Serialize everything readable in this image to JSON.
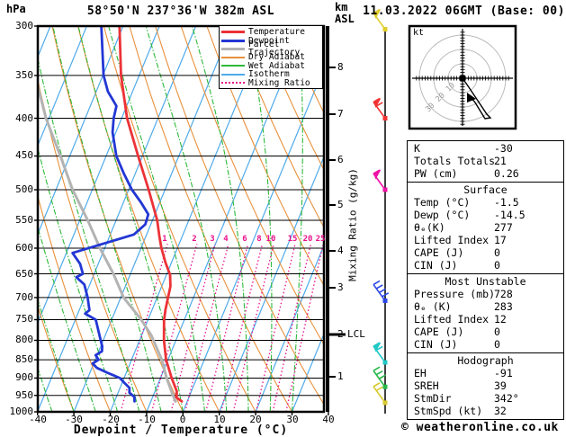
{
  "header": {
    "station_title": "58°50'N 237°36'W 382m ASL",
    "datetime_title": "11.03.2022 06GMT (Base: 00)"
  },
  "axes": {
    "pressure_unit": "hPa",
    "pressure_ticks": [
      300,
      350,
      400,
      450,
      500,
      550,
      600,
      650,
      700,
      750,
      800,
      850,
      900,
      950,
      1000
    ],
    "temp_ticks": [
      -40,
      -30,
      -20,
      -10,
      0,
      10,
      20,
      30,
      40
    ],
    "temp_axis_title": "Dewpoint / Temperature (°C)",
    "km_axis_label": "km ASL",
    "km_ticks": [
      [
        8,
        75
      ],
      [
        7,
        127
      ],
      [
        6,
        178
      ],
      [
        5,
        228
      ],
      [
        4,
        279
      ],
      [
        3,
        320
      ],
      [
        2,
        372
      ],
      [
        1,
        419
      ]
    ],
    "lcl_label": "LCL",
    "mixing_axis_label": "Mixing Ratio (g/kg)"
  },
  "legend": {
    "items": [
      {
        "label": "Temperature",
        "color": "#ec3237",
        "thick": true,
        "dotted": false
      },
      {
        "label": "Dewpoint",
        "color": "#2337d4",
        "thick": true,
        "dotted": false
      },
      {
        "label": "Parcel Trajectory",
        "color": "#b3b3b3",
        "thick": true,
        "dotted": false
      },
      {
        "label": "Dry Adiabat",
        "color": "#e8913c",
        "thick": false,
        "dotted": false
      },
      {
        "label": "Wet Adiabat",
        "color": "#2eb93a",
        "thick": false,
        "dotted": false
      },
      {
        "label": "Isotherm",
        "color": "#4fabea",
        "thick": false,
        "dotted": false
      },
      {
        "label": "Mixing Ratio",
        "color": "#e8118c",
        "thick": false,
        "dotted": true
      }
    ]
  },
  "chart_data": {
    "type": "line",
    "title": "Skew-T log-P sounding 58°50'N 237°36'W 382m ASL 11.03.2022 06GMT",
    "xlabel": "Dewpoint / Temperature (°C)",
    "ylabel": "hPa",
    "x_range": [
      -40,
      40
    ],
    "p_range": [
      300,
      1000
    ],
    "y_scale": "log",
    "skew": "isotherms slant up-right",
    "series": [
      {
        "name": "Temperature",
        "color": "#ec3237",
        "points_p_T": [
          [
            300,
            -61
          ],
          [
            350,
            -55
          ],
          [
            400,
            -48.5
          ],
          [
            450,
            -41.2
          ],
          [
            500,
            -34.5
          ],
          [
            550,
            -28.7
          ],
          [
            578,
            -26.3
          ],
          [
            600,
            -24.4
          ],
          [
            628,
            -21.6
          ],
          [
            652,
            -19.0
          ],
          [
            676,
            -17.6
          ],
          [
            700,
            -17.0
          ],
          [
            728,
            -16.3
          ],
          [
            752,
            -15.5
          ],
          [
            800,
            -13.3
          ],
          [
            850,
            -10.5
          ],
          [
            900,
            -6.9
          ],
          [
            938,
            -4.0
          ],
          [
            956,
            -3.4
          ],
          [
            968,
            -1.5
          ]
        ]
      },
      {
        "name": "Dewpoint",
        "color": "#2337d4",
        "points_p_T": [
          [
            300,
            -66
          ],
          [
            350,
            -59.8
          ],
          [
            368,
            -56.8
          ],
          [
            385,
            -52.8
          ],
          [
            400,
            -52.2
          ],
          [
            418,
            -50.9
          ],
          [
            450,
            -47.2
          ],
          [
            475,
            -43.2
          ],
          [
            500,
            -39.1
          ],
          [
            520,
            -35.2
          ],
          [
            540,
            -31.8
          ],
          [
            557,
            -31.5
          ],
          [
            575,
            -33.5
          ],
          [
            592,
            -41
          ],
          [
            609,
            -48.3
          ],
          [
            630,
            -45
          ],
          [
            650,
            -43.1
          ],
          [
            657,
            -44.5
          ],
          [
            672,
            -41.5
          ],
          [
            700,
            -39.1
          ],
          [
            728,
            -37.2
          ],
          [
            736,
            -38
          ],
          [
            750,
            -34.4
          ],
          [
            775,
            -32.5
          ],
          [
            800,
            -30.7
          ],
          [
            815,
            -29.6
          ],
          [
            828,
            -29.1
          ],
          [
            838,
            -30.4
          ],
          [
            850,
            -29.1
          ],
          [
            860,
            -30.3
          ],
          [
            872,
            -28.6
          ],
          [
            885,
            -25.2
          ],
          [
            900,
            -21.1
          ],
          [
            915,
            -19.2
          ],
          [
            928,
            -17.4
          ],
          [
            942,
            -16.9
          ],
          [
            955,
            -15.0
          ],
          [
            968,
            -14.5
          ]
        ]
      },
      {
        "name": "Parcel Trajectory",
        "color": "#b3b3b3",
        "points_p_T": [
          [
            360,
            -77
          ],
          [
            400,
            -70.8
          ],
          [
            450,
            -62.6
          ],
          [
            500,
            -55.4
          ],
          [
            550,
            -47.8
          ],
          [
            600,
            -41.3
          ],
          [
            650,
            -34.7
          ],
          [
            700,
            -29.2
          ],
          [
            750,
            -21.9
          ],
          [
            788,
            -17.3
          ],
          [
            800,
            -16.2
          ],
          [
            850,
            -11.7
          ],
          [
            900,
            -8.3
          ],
          [
            950,
            -4.6
          ],
          [
            968,
            -3.2
          ]
        ]
      }
    ],
    "grid": {
      "isotherm_color": "#4fabea",
      "isotherm_step_C": 10,
      "dry_adiabat_color": "#e8913c",
      "dry_adiabat_step_C": 10,
      "wet_adiabat_color": "#2eb93a",
      "wet_adiabat_step_C": 6,
      "mixing_ratio_color": "#e8118c",
      "pressure_line_color": "#000000",
      "pressure_line_step_hPa": 50
    },
    "mixing_ratio_values_gkg": [
      1,
      2,
      3,
      4,
      6,
      8,
      10,
      15,
      20,
      25
    ],
    "wind_barbs": [
      {
        "p": 303,
        "color": "#e0cd2e",
        "pennant": true,
        "ticks": 1
      },
      {
        "p": 400,
        "color": "#f23434",
        "pennant": true,
        "ticks": 2
      },
      {
        "p": 500,
        "color": "#ee12a5",
        "pennant": true,
        "ticks": 1
      },
      {
        "p": 707,
        "color": "#2a46e8",
        "pennant": false,
        "ticks": 4
      },
      {
        "p": 857,
        "color": "#21c8c6",
        "pennant": true,
        "ticks": 2
      },
      {
        "p": 925,
        "color": "#28b94a",
        "pennant": false,
        "ticks": 3
      },
      {
        "p": 972,
        "color": "#d8ca30",
        "pennant": false,
        "ticks": 2
      }
    ]
  },
  "hodograph": {
    "unit_label": "kt",
    "ring_labels": [
      "10",
      "20",
      "30"
    ],
    "rings_kt": [
      10,
      20,
      30
    ],
    "trace_points": [
      [
        514,
        87
      ],
      [
        521,
        97
      ],
      [
        531,
        112
      ],
      [
        541,
        127
      ],
      [
        545,
        131
      ],
      [
        539,
        132
      ],
      [
        528,
        114
      ],
      [
        523,
        108
      ]
    ]
  },
  "panel": {
    "sections": [
      {
        "title": "",
        "rows": [
          [
            "K",
            "-30"
          ],
          [
            "Totals Totals",
            "21"
          ],
          [
            "PW (cm)",
            "0.26"
          ]
        ]
      },
      {
        "title": "Surface",
        "rows": [
          [
            "Temp (°C)",
            "-1.5"
          ],
          [
            "Dewp (°C)",
            "-14.5"
          ],
          [
            "θₑ(K)",
            "277"
          ],
          [
            "Lifted Index",
            "17"
          ],
          [
            "CAPE (J)",
            "0"
          ],
          [
            "CIN (J)",
            "0"
          ]
        ]
      },
      {
        "title": "Most Unstable",
        "rows": [
          [
            "Pressure (mb)",
            "728"
          ],
          [
            "θₑ (K)",
            "283"
          ],
          [
            "Lifted Index",
            "12"
          ],
          [
            "CAPE (J)",
            "0"
          ],
          [
            "CIN (J)",
            "0"
          ]
        ]
      },
      {
        "title": "Hodograph",
        "rows": [
          [
            "EH",
            "-91"
          ],
          [
            "SREH",
            "39"
          ],
          [
            "StmDir",
            "342°"
          ],
          [
            "StmSpd (kt)",
            "32"
          ]
        ]
      }
    ]
  },
  "footer": {
    "credit": "© weatheronline.co.uk"
  }
}
